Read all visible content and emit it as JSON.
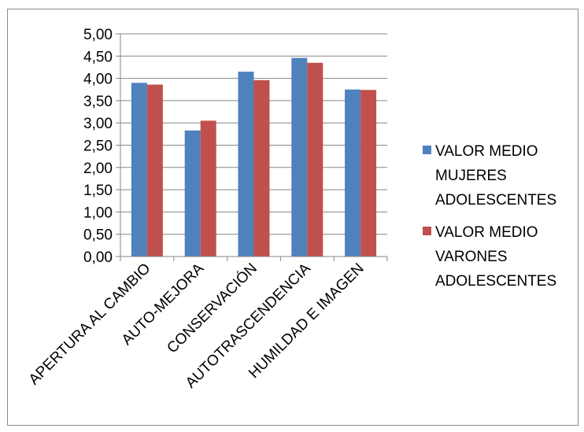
{
  "chart_data": {
    "type": "bar",
    "categories": [
      "APERTURA AL CAMBIO",
      "AUTO-MEJORA",
      "CONSERVACIÓN",
      "AUTOTRASCENDENCIA",
      "HUMILDAD E IMAGEN"
    ],
    "series": [
      {
        "name": "VALOR MEDIO MUJERES ADOLESCENTES",
        "legend_lines": [
          "VALOR MEDIO",
          "MUJERES",
          "ADOLESCENTES"
        ],
        "color": "#4f81bd",
        "values": [
          3.9,
          2.83,
          4.15,
          4.46,
          3.75
        ]
      },
      {
        "name": "VALOR MEDIO VARONES ADOLESCENTES",
        "legend_lines": [
          "VALOR MEDIO",
          "VARONES",
          "ADOLESCENTES"
        ],
        "color": "#c0504d",
        "values": [
          3.86,
          3.05,
          3.96,
          4.35,
          3.74
        ]
      }
    ],
    "y_ticks": [
      "0,00",
      "0,50",
      "1,00",
      "1,50",
      "2,00",
      "2,50",
      "3,00",
      "3,50",
      "4,00",
      "4,50",
      "5,00"
    ],
    "ylim": [
      0,
      5
    ],
    "grid": true,
    "legend_position": "right",
    "title": "",
    "xlabel": "",
    "ylabel": ""
  }
}
